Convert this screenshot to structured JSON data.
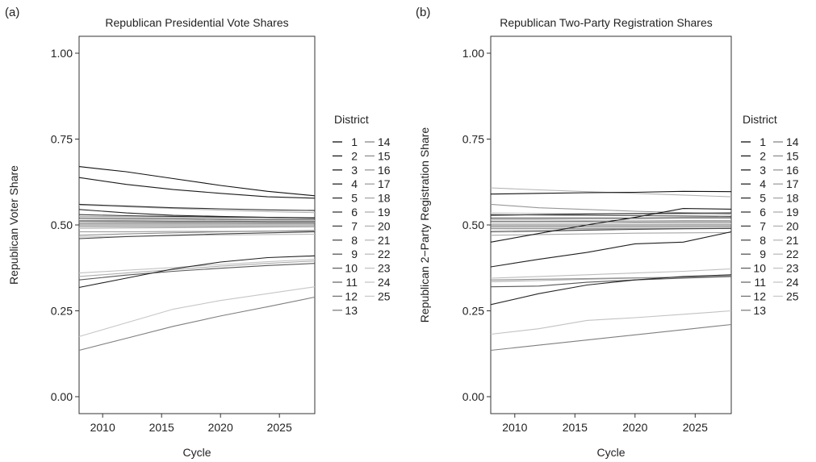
{
  "chart_data": [
    {
      "type": "line",
      "panel_label": "(a)",
      "title": "Republican Presidential Vote Shares",
      "xlabel": "Cycle",
      "ylabel": "Republican Voter Share",
      "xlim": [
        2008,
        2028
      ],
      "ylim": [
        0,
        1
      ],
      "x_ticks": [
        2010,
        2015,
        2020,
        2025
      ],
      "y_ticks": [
        "0.00",
        "0.25",
        "0.50",
        "0.75",
        "1.00"
      ],
      "grid": false,
      "legend": {
        "title": "District",
        "placement": "right",
        "columns": [
          [
            "1",
            "2",
            "3",
            "4",
            "5",
            "6",
            "7",
            "8",
            "9",
            "10",
            "11",
            "12",
            "13"
          ],
          [
            "14",
            "15",
            "16",
            "17",
            "18",
            "19",
            "20",
            "21",
            "22",
            "23",
            "24",
            "25"
          ]
        ]
      },
      "x": [
        2008,
        2012,
        2016,
        2020,
        2024,
        2028
      ],
      "series": [
        {
          "name": "1",
          "color": "#111111",
          "values": [
            0.67,
            0.655,
            0.635,
            0.615,
            0.598,
            0.585
          ]
        },
        {
          "name": "2",
          "color": "#1a1a1a",
          "values": [
            0.638,
            0.618,
            0.603,
            0.592,
            0.582,
            0.578
          ]
        },
        {
          "name": "3",
          "color": "#1f1f1f",
          "values": [
            0.318,
            0.345,
            0.372,
            0.392,
            0.405,
            0.41
          ]
        },
        {
          "name": "4",
          "color": "#262626",
          "values": [
            0.545,
            0.535,
            0.528,
            0.525,
            0.522,
            0.52
          ]
        },
        {
          "name": "5",
          "color": "#2e2e2e",
          "values": [
            0.56,
            0.555,
            0.55,
            0.547,
            0.544,
            0.542
          ]
        },
        {
          "name": "6",
          "color": "#383838",
          "values": [
            0.53,
            0.527,
            0.525,
            0.523,
            0.522,
            0.521
          ]
        },
        {
          "name": "7",
          "color": "#424242",
          "values": [
            0.46,
            0.466,
            0.47,
            0.474,
            0.477,
            0.48
          ]
        },
        {
          "name": "8",
          "color": "#4d4d4d",
          "values": [
            0.52,
            0.519,
            0.518,
            0.517,
            0.516,
            0.516
          ]
        },
        {
          "name": "9",
          "color": "#575757",
          "values": [
            0.34,
            0.354,
            0.365,
            0.374,
            0.382,
            0.388
          ]
        },
        {
          "name": "10",
          "color": "#616161",
          "values": [
            0.512,
            0.512,
            0.511,
            0.511,
            0.51,
            0.51
          ]
        },
        {
          "name": "11",
          "color": "#6b6b6b",
          "values": [
            0.505,
            0.505,
            0.505,
            0.505,
            0.505,
            0.505
          ]
        },
        {
          "name": "12",
          "color": "#757575",
          "values": [
            0.5,
            0.5,
            0.5,
            0.5,
            0.5,
            0.5
          ]
        },
        {
          "name": "13",
          "color": "#7f7f7f",
          "values": [
            0.135,
            0.17,
            0.205,
            0.235,
            0.262,
            0.29
          ]
        },
        {
          "name": "14",
          "color": "#878787",
          "values": [
            0.495,
            0.495,
            0.495,
            0.495,
            0.495,
            0.495
          ]
        },
        {
          "name": "15",
          "color": "#8f8f8f",
          "values": [
            0.47,
            0.474,
            0.477,
            0.48,
            0.482,
            0.484
          ]
        },
        {
          "name": "16",
          "color": "#979797",
          "values": [
            0.48,
            0.48,
            0.481,
            0.481,
            0.482,
            0.482
          ]
        },
        {
          "name": "17",
          "color": "#9f9f9f",
          "values": [
            0.51,
            0.509,
            0.508,
            0.508,
            0.507,
            0.507
          ]
        },
        {
          "name": "18",
          "color": "#a6a6a6",
          "values": [
            0.525,
            0.524,
            0.523,
            0.522,
            0.522,
            0.521
          ]
        },
        {
          "name": "19",
          "color": "#adadad",
          "values": [
            0.35,
            0.36,
            0.37,
            0.38,
            0.388,
            0.395
          ]
        },
        {
          "name": "20",
          "color": "#b3b3b3",
          "values": [
            0.558,
            0.553,
            0.548,
            0.543,
            0.539,
            0.536
          ]
        },
        {
          "name": "21",
          "color": "#b8b8b8",
          "values": [
            0.49,
            0.491,
            0.492,
            0.493,
            0.494,
            0.495
          ]
        },
        {
          "name": "22",
          "color": "#bdbdbd",
          "values": [
            0.465,
            0.467,
            0.469,
            0.471,
            0.472,
            0.473
          ]
        },
        {
          "name": "23",
          "color": "#c2c2c2",
          "values": [
            0.36,
            0.368,
            0.376,
            0.385,
            0.393,
            0.4
          ]
        },
        {
          "name": "24",
          "color": "#c6c6c6",
          "values": [
            0.175,
            0.215,
            0.255,
            0.28,
            0.3,
            0.32
          ]
        },
        {
          "name": "25",
          "color": "#cacaca",
          "values": [
            0.515,
            0.515,
            0.514,
            0.514,
            0.513,
            0.513
          ]
        }
      ]
    },
    {
      "type": "line",
      "panel_label": "(b)",
      "title": "Republican Two-Party Registration Shares",
      "xlabel": "Cycle",
      "ylabel": "Republican 2−Party Registration Share",
      "xlim": [
        2008,
        2028
      ],
      "ylim": [
        0,
        1
      ],
      "x_ticks": [
        2010,
        2015,
        2020,
        2025
      ],
      "y_ticks": [
        "0.00",
        "0.25",
        "0.50",
        "0.75",
        "1.00"
      ],
      "grid": false,
      "legend": {
        "title": "District",
        "placement": "right",
        "columns": [
          [
            "1",
            "2",
            "3",
            "4",
            "5",
            "6",
            "7",
            "8",
            "9",
            "10",
            "11",
            "12",
            "13"
          ],
          [
            "14",
            "15",
            "16",
            "17",
            "18",
            "19",
            "20",
            "21",
            "22",
            "23",
            "24",
            "25"
          ]
        ]
      },
      "x": [
        2008,
        2012,
        2016,
        2020,
        2024,
        2028
      ],
      "series": [
        {
          "name": "1",
          "color": "#111111",
          "values": [
            0.59,
            0.592,
            0.594,
            0.595,
            0.598,
            0.597
          ]
        },
        {
          "name": "2",
          "color": "#1a1a1a",
          "values": [
            0.45,
            0.475,
            0.5,
            0.522,
            0.548,
            0.546
          ]
        },
        {
          "name": "3",
          "color": "#1f1f1f",
          "values": [
            0.378,
            0.4,
            0.42,
            0.445,
            0.45,
            0.48
          ]
        },
        {
          "name": "4",
          "color": "#262626",
          "values": [
            0.268,
            0.3,
            0.325,
            0.34,
            0.35,
            0.355
          ]
        },
        {
          "name": "5",
          "color": "#2e2e2e",
          "values": [
            0.528,
            0.53,
            0.532,
            0.533,
            0.534,
            0.535
          ]
        },
        {
          "name": "6",
          "color": "#383838",
          "values": [
            0.52,
            0.52,
            0.52,
            0.52,
            0.521,
            0.521
          ]
        },
        {
          "name": "7",
          "color": "#424242",
          "values": [
            0.48,
            0.482,
            0.485,
            0.487,
            0.489,
            0.49
          ]
        },
        {
          "name": "8",
          "color": "#4d4d4d",
          "values": [
            0.53,
            0.529,
            0.528,
            0.527,
            0.526,
            0.525
          ]
        },
        {
          "name": "9",
          "color": "#575757",
          "values": [
            0.32,
            0.322,
            0.333,
            0.34,
            0.345,
            0.35
          ]
        },
        {
          "name": "10",
          "color": "#616161",
          "values": [
            0.51,
            0.51,
            0.51,
            0.509,
            0.509,
            0.509
          ]
        },
        {
          "name": "11",
          "color": "#6b6b6b",
          "values": [
            0.5,
            0.5,
            0.5,
            0.5,
            0.5,
            0.5
          ]
        },
        {
          "name": "12",
          "color": "#757575",
          "values": [
            0.495,
            0.495,
            0.495,
            0.495,
            0.495,
            0.495
          ]
        },
        {
          "name": "13",
          "color": "#7f7f7f",
          "values": [
            0.135,
            0.15,
            0.165,
            0.18,
            0.195,
            0.21
          ]
        },
        {
          "name": "14",
          "color": "#878787",
          "values": [
            0.49,
            0.49,
            0.49,
            0.49,
            0.49,
            0.49
          ]
        },
        {
          "name": "15",
          "color": "#8f8f8f",
          "values": [
            0.34,
            0.342,
            0.344,
            0.346,
            0.348,
            0.35
          ]
        },
        {
          "name": "16",
          "color": "#979797",
          "values": [
            0.56,
            0.55,
            0.545,
            0.54,
            0.536,
            0.533
          ]
        },
        {
          "name": "17",
          "color": "#9f9f9f",
          "values": [
            0.515,
            0.515,
            0.514,
            0.514,
            0.513,
            0.513
          ]
        },
        {
          "name": "18",
          "color": "#a6a6a6",
          "values": [
            0.47,
            0.472,
            0.474,
            0.476,
            0.477,
            0.478
          ]
        },
        {
          "name": "19",
          "color": "#adadad",
          "values": [
            0.335,
            0.338,
            0.342,
            0.345,
            0.348,
            0.352
          ]
        },
        {
          "name": "20",
          "color": "#b3b3b3",
          "values": [
            0.608,
            0.602,
            0.597,
            0.592,
            0.587,
            0.582
          ]
        },
        {
          "name": "21",
          "color": "#b8b8b8",
          "values": [
            0.505,
            0.505,
            0.505,
            0.505,
            0.504,
            0.504
          ]
        },
        {
          "name": "22",
          "color": "#bdbdbd",
          "values": [
            0.345,
            0.35,
            0.355,
            0.36,
            0.365,
            0.372
          ]
        },
        {
          "name": "23",
          "color": "#c2c2c2",
          "values": [
            0.182,
            0.198,
            0.222,
            0.23,
            0.24,
            0.25
          ]
        },
        {
          "name": "24",
          "color": "#c6c6c6",
          "values": [
            0.535,
            0.534,
            0.533,
            0.532,
            0.531,
            0.53
          ]
        },
        {
          "name": "25",
          "color": "#cacaca",
          "values": [
            0.485,
            0.486,
            0.487,
            0.488,
            0.489,
            0.49
          ]
        }
      ]
    }
  ]
}
